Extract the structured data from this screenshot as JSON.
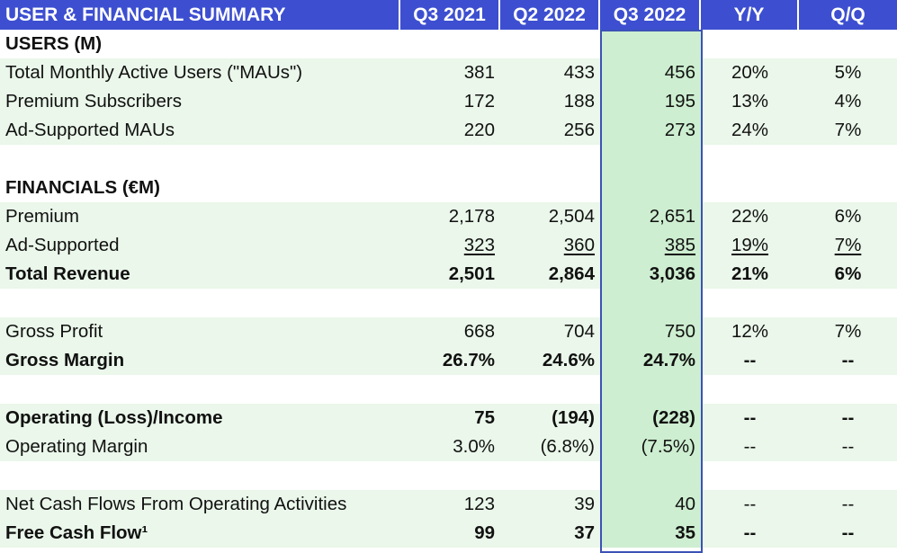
{
  "header": {
    "title": "USER & FINANCIAL SUMMARY",
    "col_q3_2021": "Q3 2021",
    "col_q2_2022": "Q2 2022",
    "col_q3_2022": "Q3 2022",
    "col_yy": "Y/Y",
    "col_qq": "Q/Q"
  },
  "users": {
    "section_title": "USERS (M)",
    "mau": {
      "label": "Total Monthly Active Users (\"MAUs\")",
      "q3_2021": "381",
      "q2_2022": "433",
      "q3_2022": "456",
      "yy": "20%",
      "qq": "5%"
    },
    "premium": {
      "label": "Premium Subscribers",
      "q3_2021": "172",
      "q2_2022": "188",
      "q3_2022": "195",
      "yy": "13%",
      "qq": "4%"
    },
    "ad": {
      "label": "Ad-Supported MAUs",
      "q3_2021": "220",
      "q2_2022": "256",
      "q3_2022": "273",
      "yy": "24%",
      "qq": "7%"
    }
  },
  "financials": {
    "section_title": "FINANCIALS (€M)",
    "premium": {
      "label": "Premium",
      "q3_2021": "2,178",
      "q2_2022": "2,504",
      "q3_2022": "2,651",
      "yy": "22%",
      "qq": "6%"
    },
    "ad": {
      "label": "Ad-Supported",
      "q3_2021": "323",
      "q2_2022": "360",
      "q3_2022": "385",
      "yy": "19%",
      "qq": "7%"
    },
    "total_revenue": {
      "label": "Total Revenue",
      "q3_2021": "2,501",
      "q2_2022": "2,864",
      "q3_2022": "3,036",
      "yy": "21%",
      "qq": "6%"
    },
    "gross_profit": {
      "label": "Gross Profit",
      "q3_2021": "668",
      "q2_2022": "704",
      "q3_2022": "750",
      "yy": "12%",
      "qq": "7%"
    },
    "gross_margin": {
      "label": "Gross Margin",
      "q3_2021": "26.7%",
      "q2_2022": "24.6%",
      "q3_2022": "24.7%",
      "yy": "--",
      "qq": "--"
    },
    "operating_income": {
      "label": "Operating (Loss)/Income",
      "q3_2021": "75",
      "q2_2022": "(194)",
      "q3_2022": "(228)",
      "yy": "--",
      "qq": "--"
    },
    "operating_margin": {
      "label": "Operating Margin",
      "q3_2021": "3.0%",
      "q2_2022": "(6.8%)",
      "q3_2022": "(7.5%)",
      "yy": "--",
      "qq": "--"
    },
    "net_cash": {
      "label": "Net Cash Flows From Operating Activities",
      "q3_2021": "123",
      "q2_2022": "39",
      "q3_2022": "40",
      "yy": "--",
      "qq": "--"
    },
    "fcf": {
      "label": "Free Cash Flow¹",
      "q3_2021": "99",
      "q2_2022": "37",
      "q3_2022": "35",
      "yy": "--",
      "qq": "--"
    }
  }
}
